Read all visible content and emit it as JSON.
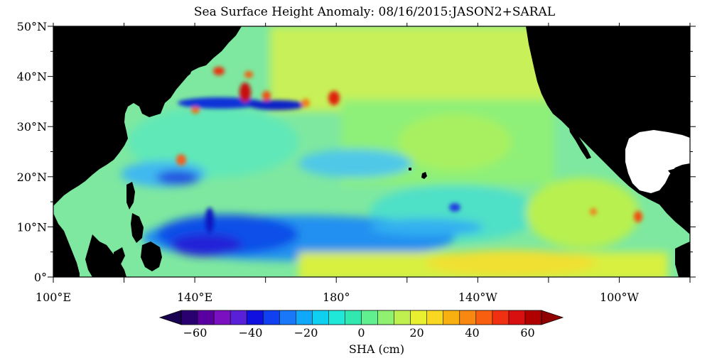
{
  "title": "Sea Surface Height Anomaly: 08/16/2015:JASON2+SARAL",
  "map": {
    "lat_labels": [
      "50°N",
      "40°N",
      "30°N",
      "20°N",
      "10°N",
      "0°"
    ],
    "lat_values": [
      50,
      40,
      30,
      20,
      10,
      0
    ],
    "lon_labels": [
      "100°E",
      "140°E",
      "180°",
      "140°W",
      "100°W"
    ],
    "lon_values": [
      100,
      140,
      180,
      220,
      260
    ],
    "lon_range": [
      100,
      280
    ],
    "lat_range": [
      0,
      50
    ],
    "land_color": "#000000",
    "no_data_color": "#ffffff"
  },
  "colorbar": {
    "label": "SHA (cm)",
    "tick_labels": [
      "−60",
      "−40",
      "−20",
      "0",
      "20",
      "40",
      "60"
    ],
    "tick_values": [
      -60,
      -40,
      -20,
      0,
      20,
      40,
      60
    ],
    "range": [
      -65,
      65
    ],
    "colors": [
      "#2a0070",
      "#5a00a0",
      "#7a10c0",
      "#5a20d8",
      "#1010e0",
      "#1040f0",
      "#1878f8",
      "#10a8f8",
      "#10d0f0",
      "#20e8d8",
      "#30e8b0",
      "#60f090",
      "#90f070",
      "#c0f050",
      "#e8f030",
      "#f8d820",
      "#f8b010",
      "#f88810",
      "#f86010",
      "#f03010",
      "#d81010",
      "#b00000"
    ],
    "under_color": "#1a0050",
    "over_color": "#900000"
  }
}
